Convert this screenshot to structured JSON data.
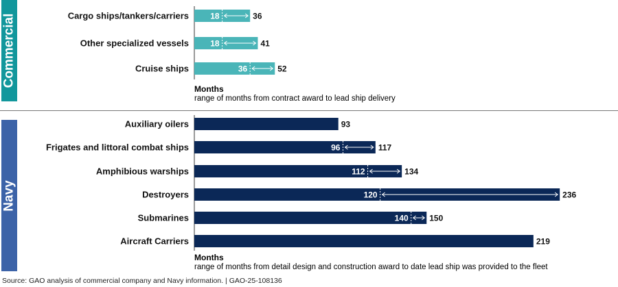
{
  "sections": {
    "commercial": {
      "label": "Commercial",
      "color": "#12979c",
      "bar_color": "#4ab5b8"
    },
    "navy": {
      "label": "Navy",
      "color": "#3c63a8",
      "bar_color": "#0b2857"
    }
  },
  "chart_data": [
    {
      "type": "bar",
      "orientation": "horizontal",
      "group": "Commercial",
      "categories": [
        "Cargo ships/tankers/carriers",
        "Other specialized vessels",
        "Cruise ships"
      ],
      "range_low": [
        18,
        18,
        36
      ],
      "range_high": [
        36,
        41,
        52
      ],
      "xlabel": "Months",
      "xlabel_sub": "range of months from contract award to lead ship delivery"
    },
    {
      "type": "bar",
      "orientation": "horizontal",
      "group": "Navy",
      "categories": [
        "Auxiliary oilers",
        "Frigates and littoral combat ships",
        "Amphibious warships",
        "Destroyers",
        "Submarines",
        "Aircraft Carriers"
      ],
      "range_low": [
        null,
        96,
        112,
        120,
        140,
        null
      ],
      "range_high": [
        93,
        117,
        134,
        236,
        150,
        219
      ],
      "xlabel": "Months",
      "xlabel_sub": "range of months from detail design and construction award to date lead ship was provided to the fleet"
    }
  ],
  "source": "Source: GAO analysis of commercial company and Navy information.  |  GAO-25-108136"
}
